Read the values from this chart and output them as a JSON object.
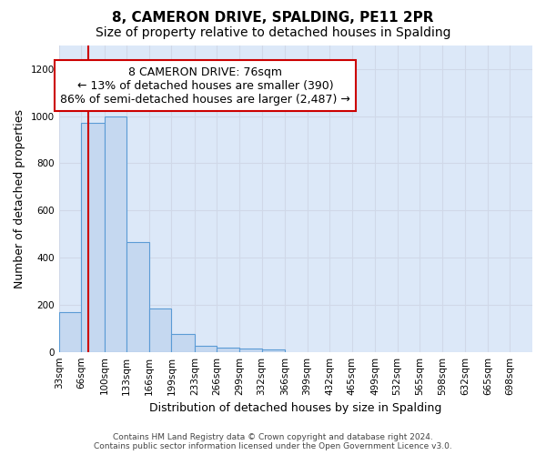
{
  "title": "8, CAMERON DRIVE, SPALDING, PE11 2PR",
  "subtitle": "Size of property relative to detached houses in Spalding",
  "xlabel": "Distribution of detached houses by size in Spalding",
  "ylabel": "Number of detached properties",
  "bin_edges": [
    33,
    66,
    100,
    133,
    166,
    199,
    233,
    266,
    299,
    332,
    366,
    399,
    432,
    465,
    499,
    532,
    565,
    598,
    632,
    665,
    698,
    731
  ],
  "bar_heights": [
    170,
    970,
    1000,
    465,
    185,
    75,
    25,
    20,
    15,
    10,
    0,
    0,
    0,
    0,
    0,
    0,
    0,
    0,
    0,
    0,
    0
  ],
  "bar_facecolor": "#c5d8f0",
  "bar_edgecolor": "#5b9bd5",
  "property_size": 76,
  "red_line_color": "#cc0000",
  "annotation_text": "8 CAMERON DRIVE: 76sqm\n← 13% of detached houses are smaller (390)\n86% of semi-detached houses are larger (2,487) →",
  "annotation_box_edgecolor": "#cc0000",
  "annotation_box_facecolor": "#ffffff",
  "ylim": [
    0,
    1300
  ],
  "yticks": [
    0,
    200,
    400,
    600,
    800,
    1000,
    1200
  ],
  "grid_color": "#d0d8e8",
  "background_color": "#dce8f8",
  "footer_text": "Contains HM Land Registry data © Crown copyright and database right 2024.\nContains public sector information licensed under the Open Government Licence v3.0.",
  "title_fontsize": 11,
  "subtitle_fontsize": 10,
  "tick_label_fontsize": 7.5,
  "ylabel_fontsize": 9,
  "xlabel_fontsize": 9,
  "annotation_fontsize": 9,
  "footer_fontsize": 6.5
}
